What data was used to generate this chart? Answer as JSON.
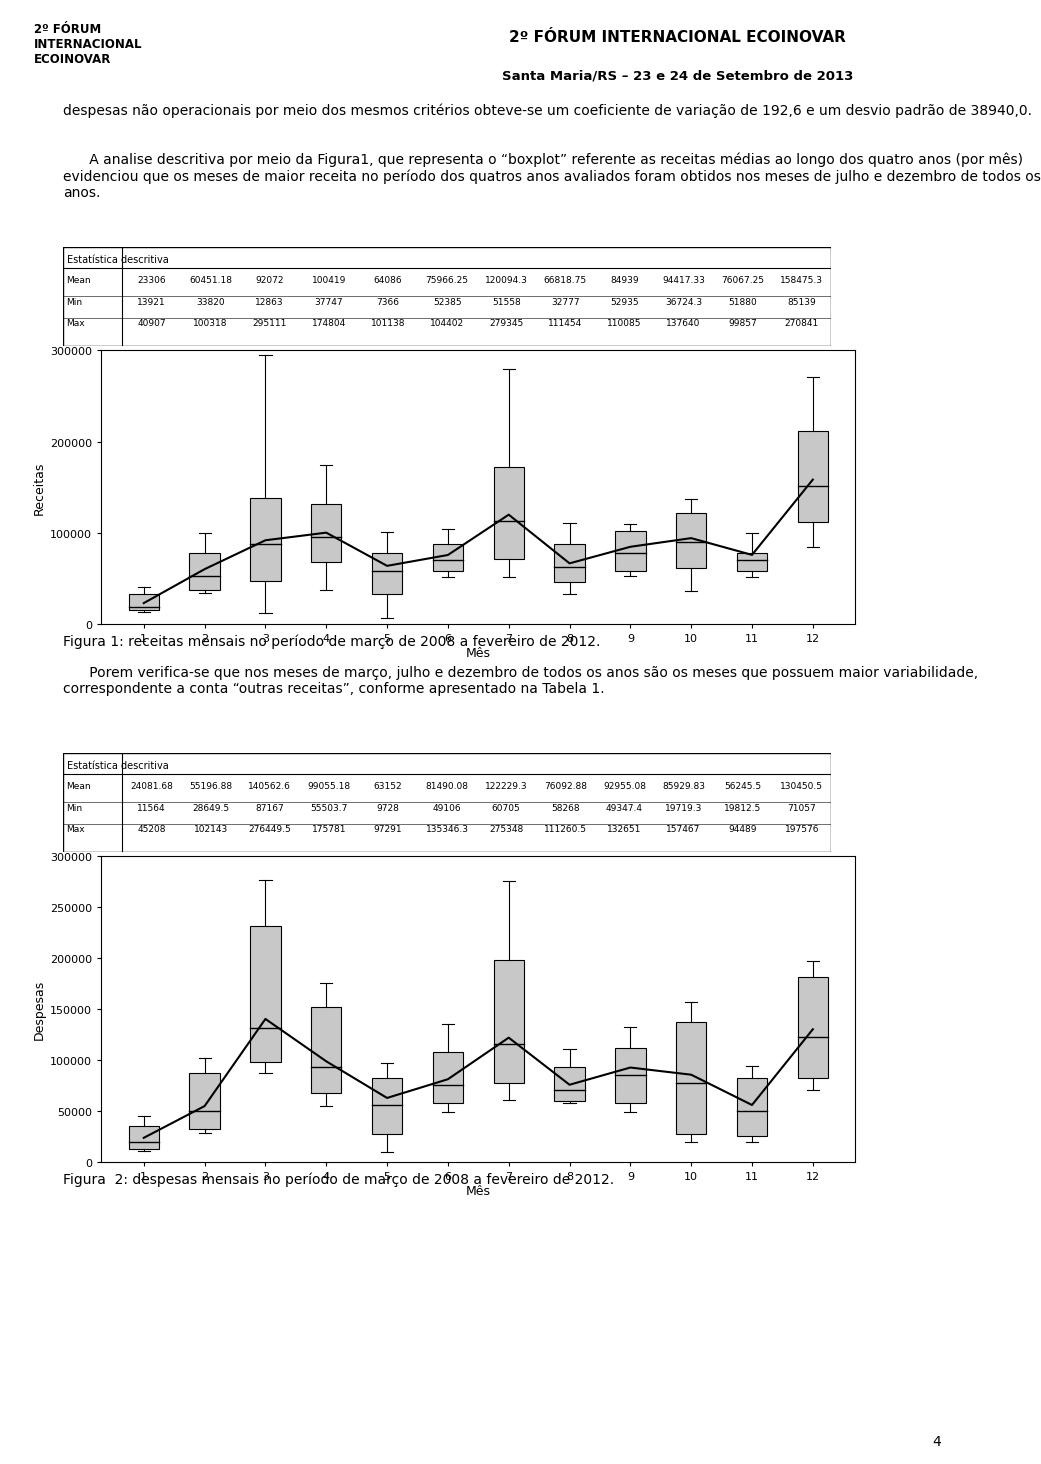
{
  "page_width": 9.6,
  "page_height": 14.58,
  "background_color": "#ffffff",
  "header_title": "2º FÓRUM INTERNACIONAL ECOINOVAR",
  "header_subtitle": "Santa Maria/RS – 23 e 24 de Setembro de 2013",
  "intro_text": "despesas não operacionais por meio dos mesmos critérios obteve-se um coeficiente de variação de 192,6 e um desvio padrão de 38940,0.",
  "paragraph1_indent": "      A analise descritiva por meio da Figura1, que representa o “boxplot” referente as receitas médias ao longo dos quatro anos (por mês) evidenciou que os meses de maior receita no período dos quatros anos avaliados foram obtidos nos meses de julho e dezembro de todos os anos.",
  "table1_title": "Estatística descritiva",
  "table1_rows": [
    [
      "Mean",
      "23306",
      "60451.18",
      "92072",
      "100419",
      "64086",
      "75966.25",
      "120094.3",
      "66818.75",
      "84939",
      "94417.33",
      "76067.25",
      "158475.3"
    ],
    [
      "Min",
      "13921",
      "33820",
      "12863",
      "37747",
      "7366",
      "52385",
      "51558",
      "32777",
      "52935",
      "36724.3",
      "51880",
      "85139"
    ],
    [
      "Max",
      "40907",
      "100318",
      "295111",
      "174804",
      "101138",
      "104402",
      "279345",
      "111454",
      "110085",
      "137640",
      "99857",
      "270841"
    ]
  ],
  "fig1_ylabel": "Receitas",
  "fig1_xlabel": "Mês",
  "fig1_ylim": [
    0,
    300000
  ],
  "fig1_yticks": [
    0,
    100000,
    200000,
    300000
  ],
  "fig1_caption": "Figura 1: receitas mensais no período de março de 2008 a fevereiro de 2012.",
  "fig1_means": [
    23306,
    60451.18,
    92072,
    100419,
    64086,
    75966.25,
    120094.3,
    66818.75,
    84939,
    94417.33,
    76067.25,
    158475.3
  ],
  "fig1_mins": [
    13921,
    33820,
    12863,
    37747,
    7366,
    52385,
    51558,
    32777,
    52935,
    36724.3,
    51880,
    85139
  ],
  "fig1_maxs": [
    40907,
    100318,
    295111,
    174804,
    101138,
    104402,
    279345,
    111454,
    110085,
    137640,
    99857,
    270841
  ],
  "fig1_q1": [
    16000,
    38000,
    48000,
    68000,
    33000,
    58000,
    72000,
    46000,
    58000,
    62000,
    58000,
    112000
  ],
  "fig1_q3": [
    33000,
    78000,
    138000,
    132000,
    78000,
    88000,
    172000,
    88000,
    102000,
    122000,
    78000,
    212000
  ],
  "fig1_medians": [
    19000,
    53000,
    88000,
    96000,
    58000,
    71000,
    113000,
    63000,
    78000,
    90000,
    71000,
    152000
  ],
  "paragraph2_indent": "      Porem verifica-se que nos meses de março, julho e dezembro de todos os anos são os meses que possuem maior variabilidade, correspondente a conta “outras receitas”, conforme apresentado na Tabela 1.",
  "table2_title": "Estatística descritiva",
  "table2_rows": [
    [
      "Mean",
      "24081.68",
      "55196.88",
      "140562.6",
      "99055.18",
      "63152",
      "81490.08",
      "122229.3",
      "76092.88",
      "92955.08",
      "85929.83",
      "56245.5",
      "130450.5"
    ],
    [
      "Min",
      "11564",
      "28649.5",
      "87167",
      "55503.7",
      "9728",
      "49106",
      "60705",
      "58268",
      "49347.4",
      "19719.3",
      "19812.5",
      "71057"
    ],
    [
      "Max",
      "45208",
      "102143",
      "276449.5",
      "175781",
      "97291",
      "135346.3",
      "275348",
      "111260.5",
      "132651",
      "157467",
      "94489",
      "197576"
    ]
  ],
  "fig2_ylabel": "Despesas",
  "fig2_xlabel": "Mês",
  "fig2_ylim": [
    0,
    300000
  ],
  "fig2_yticks": [
    0,
    50000,
    100000,
    150000,
    200000,
    250000,
    300000
  ],
  "fig2_caption": "Figura  2: despesas mensais no período de março de 2008 a fevereiro de 2012.",
  "fig2_means": [
    24081.68,
    55196.88,
    140562.6,
    99055.18,
    63152,
    81490.08,
    122229.3,
    76092.88,
    92955.08,
    85929.83,
    56245.5,
    130450.5
  ],
  "fig2_mins": [
    11564,
    28649.5,
    87167,
    55503.7,
    9728,
    49106,
    60705,
    58268,
    49347.4,
    19719.3,
    19812.5,
    71057
  ],
  "fig2_maxs": [
    45208,
    102143,
    276449.5,
    175781,
    97291,
    135346.3,
    275348,
    111260.5,
    132651,
    157467,
    94489,
    197576
  ],
  "fig2_q1": [
    13000,
    33000,
    98000,
    68000,
    28000,
    58000,
    78000,
    60000,
    58000,
    28000,
    26000,
    83000
  ],
  "fig2_q3": [
    36000,
    88000,
    232000,
    152000,
    83000,
    108000,
    198000,
    93000,
    112000,
    138000,
    83000,
    182000
  ],
  "fig2_medians": [
    20000,
    50000,
    132000,
    93000,
    56000,
    76000,
    116000,
    71000,
    86000,
    78000,
    50000,
    123000
  ],
  "page_number": "4",
  "font_size_body": 10.0,
  "table_font_size": 7.0,
  "box_color": "#c8c8c8"
}
